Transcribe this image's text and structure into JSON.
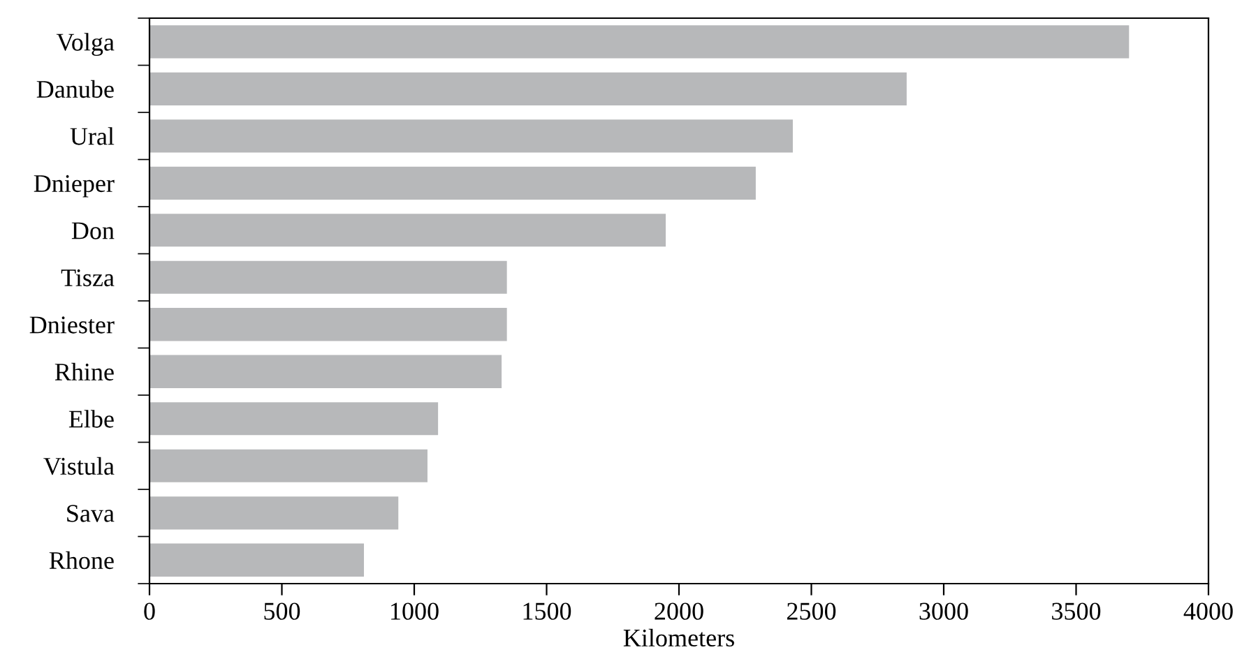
{
  "chart_data": {
    "type": "bar",
    "orientation": "horizontal",
    "xlabel": "Kilometers",
    "categories": [
      "Volga",
      "Danube",
      "Ural",
      "Dnieper",
      "Don",
      "Tisza",
      "Dniester",
      "Rhine",
      "Elbe",
      "Vistula",
      "Sava",
      "Rhone"
    ],
    "values": [
      3700,
      2860,
      2430,
      2290,
      1950,
      1350,
      1350,
      1330,
      1090,
      1050,
      940,
      810
    ],
    "color": "#b7b8ba",
    "xlim": [
      0,
      4000
    ],
    "xticks": [
      0,
      500,
      1000,
      1500,
      2000,
      2500,
      3000,
      3500,
      4000
    ],
    "grid": false,
    "legend": false
  }
}
